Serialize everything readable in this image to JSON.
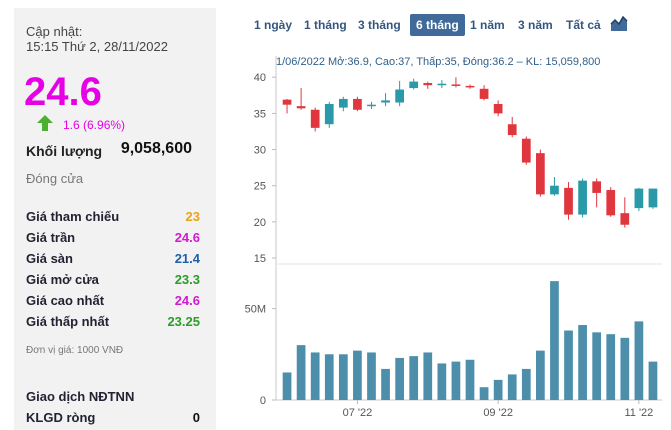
{
  "left": {
    "updated_label": "Cập nhật:",
    "updated_time": "15:15 Thứ 2, 28/11/2022",
    "price": "24.6",
    "change": "1.6 (6.96%)",
    "volume_label": "Khối lượng",
    "volume_value": "9,058,600",
    "close_label": "Đóng cửa",
    "rows": [
      {
        "label": "Giá tham chiếu",
        "value": "23",
        "color": "#e8a317"
      },
      {
        "label": "Giá trần",
        "value": "24.6",
        "color": "#d11ad1"
      },
      {
        "label": "Giá sàn",
        "value": "21.4",
        "color": "#1f5fa8"
      },
      {
        "label": "Giá mở cửa",
        "value": "23.3",
        "color": "#2a9d2a"
      },
      {
        "label": "Giá cao nhất",
        "value": "24.6",
        "color": "#d11ad1"
      },
      {
        "label": "Giá thấp nhất",
        "value": "23.25",
        "color": "#2a9d2a"
      }
    ],
    "unit_note": "Đơn vị giá: 1000 VNĐ",
    "ndtnn_label": "Giao dịch NĐTNN",
    "klgd_label": "KLGD ròng",
    "klgd_value": "0",
    "up_color": "#4caf32"
  },
  "tabs": [
    {
      "label": "1 ngày",
      "active": false
    },
    {
      "label": "1 tháng",
      "active": false
    },
    {
      "label": "3 tháng",
      "active": false
    },
    {
      "label": "6 tháng",
      "active": true
    },
    {
      "label": "1 năm",
      "active": false
    },
    {
      "label": "3 năm",
      "active": false
    },
    {
      "label": "Tất cả",
      "active": false
    }
  ],
  "chart_icon": "chart-type-icon",
  "info_line": "1/06/2022 Mở:36.9, Cao:37, Thấp:35, Đóng:36.2 – KL: 15,059,800",
  "chart_data": {
    "type": "candlestick",
    "price_axis": {
      "ticks": [
        15,
        20,
        25,
        30,
        35,
        40
      ],
      "range": [
        15,
        41
      ]
    },
    "volume_axis": {
      "ticks": [
        "50M",
        "0"
      ],
      "max": 70
    },
    "x_ticks": [
      "07 '22",
      "09 '22",
      "11 '22"
    ],
    "x_tick_indices": [
      5,
      15,
      25
    ],
    "up_color": "#2a9aa8",
    "down_color": "#e0373f",
    "volume_color": "#4d8fab",
    "candles": [
      {
        "o": 36.9,
        "h": 37.0,
        "l": 35.0,
        "c": 36.2,
        "v": 15.06
      },
      {
        "o": 36.0,
        "h": 38.5,
        "l": 35.5,
        "c": 35.7,
        "v": 30.0
      },
      {
        "o": 35.5,
        "h": 35.8,
        "l": 32.5,
        "c": 33.0,
        "v": 26.0
      },
      {
        "o": 33.5,
        "h": 36.6,
        "l": 33.0,
        "c": 36.3,
        "v": 25.0
      },
      {
        "o": 35.8,
        "h": 37.3,
        "l": 35.3,
        "c": 37.0,
        "v": 25.0
      },
      {
        "o": 37.0,
        "h": 37.3,
        "l": 35.3,
        "c": 35.5,
        "v": 27.0
      },
      {
        "o": 36.0,
        "h": 36.6,
        "l": 35.6,
        "c": 36.2,
        "v": 26.0
      },
      {
        "o": 36.5,
        "h": 37.8,
        "l": 36.0,
        "c": 36.8,
        "v": 17.0
      },
      {
        "o": 36.5,
        "h": 39.5,
        "l": 36.0,
        "c": 38.3,
        "v": 23.0
      },
      {
        "o": 38.5,
        "h": 39.8,
        "l": 38.3,
        "c": 39.4,
        "v": 24.0
      },
      {
        "o": 39.2,
        "h": 39.4,
        "l": 38.4,
        "c": 38.9,
        "v": 26.0
      },
      {
        "o": 38.9,
        "h": 39.6,
        "l": 38.5,
        "c": 39.1,
        "v": 20.0
      },
      {
        "o": 39.0,
        "h": 40.0,
        "l": 38.6,
        "c": 38.9,
        "v": 21.0
      },
      {
        "o": 38.8,
        "h": 39.0,
        "l": 38.4,
        "c": 38.7,
        "v": 22.0
      },
      {
        "o": 38.4,
        "h": 38.9,
        "l": 36.8,
        "c": 37.0,
        "v": 7.0
      },
      {
        "o": 36.3,
        "h": 36.8,
        "l": 34.6,
        "c": 35.0,
        "v": 11.0
      },
      {
        "o": 33.5,
        "h": 34.5,
        "l": 31.7,
        "c": 32.0,
        "v": 14.0
      },
      {
        "o": 31.5,
        "h": 31.8,
        "l": 27.9,
        "c": 28.2,
        "v": 17.0
      },
      {
        "o": 29.5,
        "h": 30.0,
        "l": 23.5,
        "c": 23.8,
        "v": 27.0
      },
      {
        "o": 23.8,
        "h": 26.2,
        "l": 23.6,
        "c": 25.0,
        "v": 65.0
      },
      {
        "o": 24.7,
        "h": 25.5,
        "l": 20.3,
        "c": 21.0,
        "v": 38.0
      },
      {
        "o": 21.0,
        "h": 26.0,
        "l": 20.6,
        "c": 25.7,
        "v": 41.0
      },
      {
        "o": 25.6,
        "h": 26.0,
        "l": 22.0,
        "c": 24.0,
        "v": 37.0
      },
      {
        "o": 24.4,
        "h": 24.8,
        "l": 20.7,
        "c": 20.9,
        "v": 36.0
      },
      {
        "o": 21.2,
        "h": 23.4,
        "l": 19.2,
        "c": 19.6,
        "v": 34.0
      },
      {
        "o": 21.9,
        "h": 24.7,
        "l": 21.5,
        "c": 24.6,
        "v": 43.0
      },
      {
        "o": 22.0,
        "h": 24.6,
        "l": 21.8,
        "c": 24.6,
        "v": 21.0
      }
    ]
  }
}
